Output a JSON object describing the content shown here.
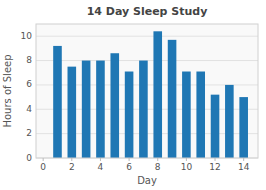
{
  "chart_data": {
    "type": "bar",
    "title": "14 Day Sleep Study",
    "xlabel": "Day",
    "ylabel": "Hours of Sleep",
    "x": [
      1,
      2,
      3,
      4,
      5,
      6,
      7,
      8,
      9,
      10,
      11,
      12,
      13,
      14
    ],
    "values": [
      9.2,
      7.5,
      8.0,
      8.0,
      8.6,
      7.1,
      8.0,
      10.4,
      9.7,
      7.1,
      7.1,
      5.2,
      6.0,
      5.0
    ],
    "color": "#1f77b4",
    "xlim": [
      -0.5,
      15
    ],
    "ylim": [
      0,
      11
    ],
    "xticks": [
      0,
      2,
      4,
      6,
      8,
      10,
      12,
      14
    ],
    "yticks": [
      0,
      2,
      4,
      6,
      8,
      10
    ],
    "grid": true
  }
}
